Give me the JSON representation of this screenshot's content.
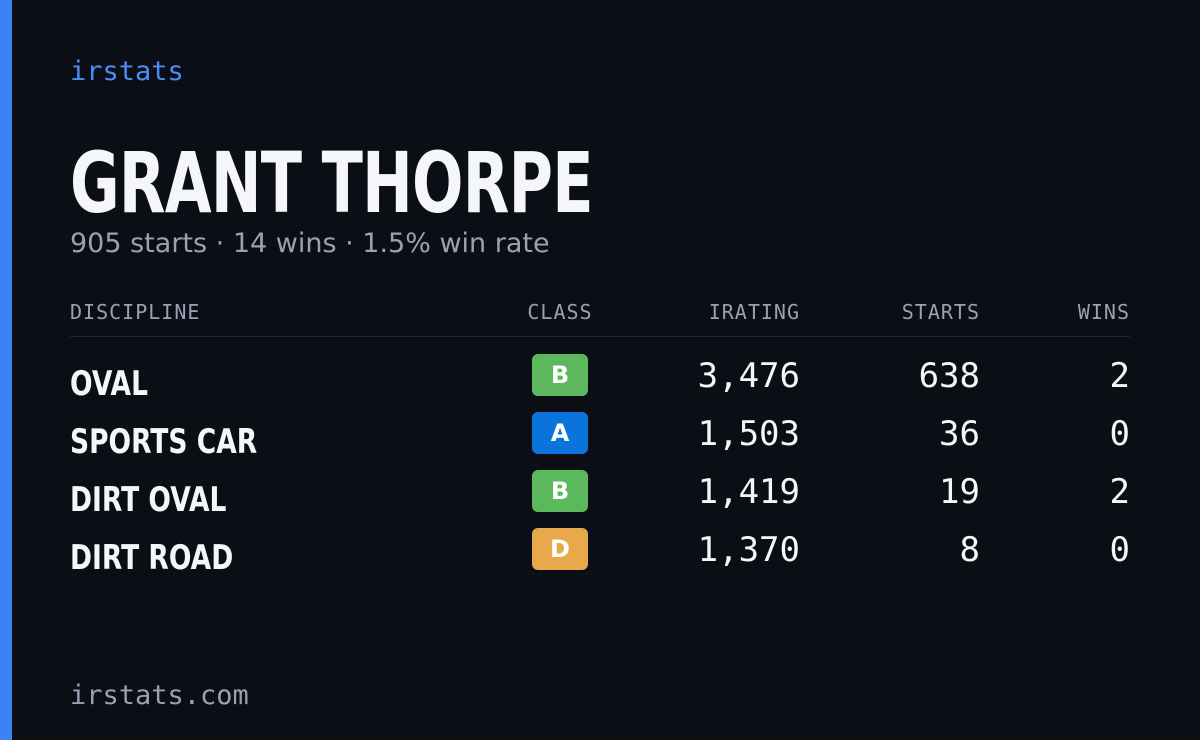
{
  "brand": "irstats",
  "driver": {
    "name": "GRANT THORPE",
    "summary": "905 starts · 14 wins · 1.5% win rate"
  },
  "table": {
    "columns": [
      "DISCIPLINE",
      "CLASS",
      "IRATING",
      "STARTS",
      "WINS"
    ],
    "rows": [
      [
        "OVAL",
        "B",
        "3,476",
        "638",
        "2"
      ],
      [
        "SPORTS CAR",
        "A",
        "1,503",
        "36",
        "0"
      ],
      [
        "DIRT OVAL",
        "B",
        "1,419",
        "19",
        "2"
      ],
      [
        "DIRT ROAD",
        "D",
        "1,370",
        "8",
        "0"
      ]
    ],
    "class_colors": [
      "#5cb85c",
      "#0a74da",
      "#5cb85c",
      "#e8a94a"
    ]
  },
  "footer": "irstats.com"
}
